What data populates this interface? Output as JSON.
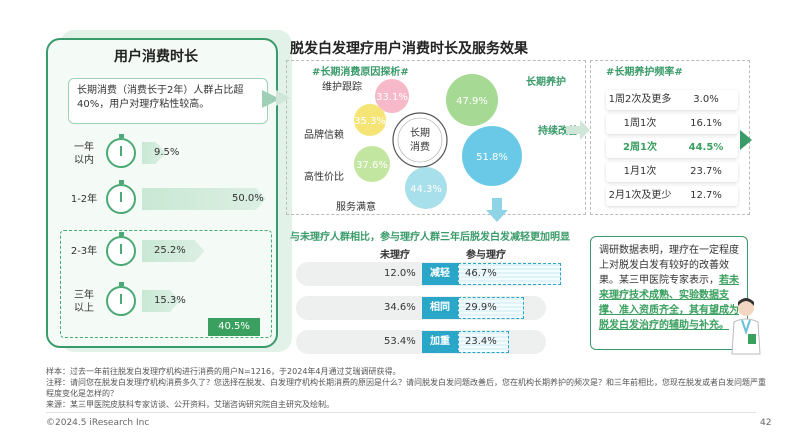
{
  "left_panel": {
    "title": "用户消费时长",
    "desc": "长期消费（消费长于2年）人群占比超40%，用户对理疗粘性较高。",
    "badge": "40.5%"
  },
  "main_title": "脱发白发理疗用户消费时长及服务效果",
  "reasons_tag": "#长期消费原因探析#",
  "center_label_1": "长期",
  "center_label_2": "消费",
  "freq_tag": "#长期养护频率#",
  "long_care_label": "长期养护",
  "improve_label": "持续改善",
  "comparison": {
    "title": "与未理疗人群相比，参与理疗人群三年后脱发白发减轻更加明显",
    "col_no": "未理疗",
    "col_yes": "参与理疗"
  },
  "expert": {
    "text1": "调研数据表明，理疗在一定程度上对脱发白发有较好的改善效果。某三甲医院专家表示，",
    "highlight": "若未来理疗技术成熟、实验数据支撑、准入资质齐全，其有望成为脱发白发治疗的辅助与补充。"
  },
  "notes": {
    "line1": "样本：过去一年前往脱发白发理疗机构进行消费的用户N=1216，于2024年4月通过艾瑞调研获得。",
    "line2": "注释：请问您在脱发白发理疗机构消费多久了？您选择在脱发、白发理疗机构长期消费的原因是什么？请问脱发白发问题改善后，您在机构长期养护的频次是？和三年前相比，您现在脱发或者白发问题严重程度变化是怎样的？",
    "line3": "来源：某三甲医院皮肤科专家访谈、公开资料，艾瑞咨询研究院自主研究及绘制。"
  },
  "footer": {
    "copyright": "©2024.5 iResearch Inc",
    "page": "42"
  },
  "colors": {
    "green": "#3aa05f",
    "teal": "#2aa6c9",
    "pink": "#f6a9c0",
    "yellow": "#f4e15a",
    "lightgreen": "#b6e38e"
  },
  "chart_data": [
    {
      "type": "bar",
      "title": "用户消费时长",
      "categories": [
        "一年以内",
        "1-2年",
        "2-3年",
        "三年以上"
      ],
      "labels_display": [
        "一年\n以内",
        "1-2年",
        "2-3年",
        "三年\n以上"
      ],
      "values": [
        9.5,
        50.0,
        25.2,
        15.3
      ],
      "value_labels": [
        "9.5%",
        "50.0%",
        "25.2%",
        "15.3%"
      ],
      "xlim": [
        0,
        50
      ]
    },
    {
      "type": "bubble",
      "title": "#长期消费原因探析#",
      "categories": [
        "维护跟踪",
        "品牌信赖",
        "高性价比",
        "服务满意",
        "长期养护",
        "持续改善"
      ],
      "values": [
        33.1,
        35.3,
        37.6,
        44.3,
        47.9,
        51.8
      ],
      "value_labels": [
        "33.1%",
        "35.3%",
        "37.6%",
        "44.3%",
        "47.9%",
        "51.8%"
      ]
    },
    {
      "type": "table",
      "title": "#长期养护频率#",
      "categories": [
        "1周2次及更多",
        "1周1次",
        "2周1次",
        "1月1次",
        "2月1次及更少"
      ],
      "values": [
        3.0,
        16.1,
        44.5,
        23.7,
        12.7
      ],
      "value_labels": [
        "3.0%",
        "16.1%",
        "44.5%",
        "23.7%",
        "12.7%"
      ]
    },
    {
      "type": "bar",
      "title": "与未理疗人群相比，参与理疗人群三年后脱发白发减轻更加明显",
      "categories": [
        "减轻",
        "相同",
        "加重"
      ],
      "series": [
        {
          "name": "未理疗",
          "values": [
            12.0,
            34.6,
            53.4
          ],
          "value_labels": [
            "12.0%",
            "34.6%",
            "53.4%"
          ]
        },
        {
          "name": "参与理疗",
          "values": [
            46.7,
            29.9,
            23.4
          ],
          "value_labels": [
            "46.7%",
            "29.9%",
            "23.4%"
          ]
        }
      ]
    }
  ]
}
